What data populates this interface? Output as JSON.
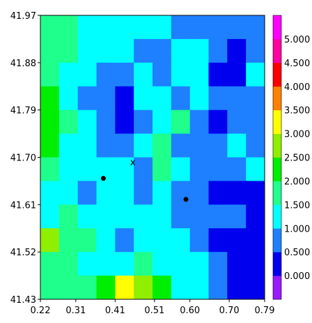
{
  "chart_data": {
    "type": "heatmap",
    "title": "",
    "xlabel": "",
    "ylabel": "",
    "xlim": [
      0.22,
      0.79
    ],
    "ylim": [
      41.43,
      41.97
    ],
    "x_ticks": [
      "0.22",
      "0.31",
      "0.41",
      "0.51",
      "0.60",
      "0.70",
      "0.79"
    ],
    "y_ticks": [
      "41.97",
      "41.88",
      "41.79",
      "41.70",
      "41.61",
      "41.52",
      "41.43"
    ],
    "colorbar": {
      "levels": [
        0.0,
        0.5,
        1.0,
        1.5,
        2.0,
        2.5,
        3.0,
        3.5,
        4.0,
        4.5,
        5.0
      ],
      "labels": [
        "0.000",
        "0.500",
        "1.000",
        "1.500",
        "2.000",
        "2.500",
        "3.000",
        "3.500",
        "4.000",
        "4.500",
        "5.000"
      ],
      "colors": [
        "#9a1aff",
        "#0000ee",
        "#1e80ff",
        "#00ffff",
        "#1eff8c",
        "#00ee00",
        "#90ee00",
        "#ffff00",
        "#ff8000",
        "#ff0000",
        "#ff00a0",
        "#ff00ff"
      ]
    },
    "points": [
      {
        "x": 0.38,
        "y": 41.66,
        "marker": "dot"
      },
      {
        "x": 0.59,
        "y": 41.62,
        "marker": "dot"
      }
    ],
    "annotations": [
      {
        "text": "x",
        "x": 0.455,
        "y": 41.685
      }
    ],
    "pixel_samples": {
      "cols": 12,
      "rows": 12,
      "bins": [
        [
          4,
          4,
          3,
          3,
          3,
          3,
          3,
          2,
          2,
          2,
          2,
          2
        ],
        [
          4,
          4,
          3,
          3,
          3,
          2,
          2,
          3,
          3,
          2,
          1,
          2
        ],
        [
          4,
          3,
          3,
          2,
          2,
          3,
          2,
          3,
          3,
          1,
          1,
          3
        ],
        [
          5,
          3,
          2,
          2,
          1,
          3,
          3,
          2,
          3,
          2,
          2,
          2
        ],
        [
          5,
          4,
          3,
          2,
          1,
          2,
          3,
          4,
          2,
          1,
          2,
          2
        ],
        [
          5,
          3,
          3,
          2,
          2,
          3,
          4,
          2,
          2,
          2,
          3,
          2
        ],
        [
          4,
          3,
          3,
          3,
          3,
          2,
          4,
          3,
          2,
          2,
          2,
          3
        ],
        [
          3,
          3,
          2,
          3,
          3,
          2,
          3,
          2,
          2,
          1,
          1,
          1
        ],
        [
          3,
          4,
          3,
          3,
          3,
          3,
          3,
          2,
          2,
          2,
          2,
          1
        ],
        [
          6,
          4,
          4,
          3,
          2,
          3,
          3,
          3,
          2,
          1,
          1,
          1
        ],
        [
          4,
          4,
          3,
          3,
          3,
          4,
          3,
          3,
          3,
          2,
          1,
          1
        ],
        [
          4,
          4,
          4,
          5,
          7,
          6,
          5,
          3,
          3,
          2,
          1,
          1
        ]
      ]
    }
  }
}
